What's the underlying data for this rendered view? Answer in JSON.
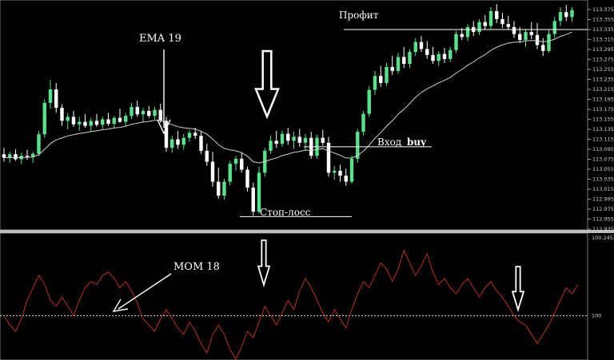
{
  "chart_data": [
    {
      "type": "candlestick",
      "panel": "price",
      "indicator_label": "EMA 19",
      "y_ticks": [
        "113.375",
        "113.355",
        "113.335",
        "113.315",
        "113.295",
        "113.275",
        "113.255",
        "113.235",
        "113.215",
        "113.195",
        "113.175",
        "113.155",
        "113.135",
        "113.115",
        "113.095",
        "113.075",
        "113.055",
        "113.035",
        "113.015",
        "112.995",
        "112.975",
        "112.955",
        "112.935"
      ],
      "ylim": [
        112.935,
        113.375
      ],
      "annotations": {
        "profit": "Профит",
        "entry": "Вход",
        "entry_side": "buy",
        "stop_loss": "Стоп-лосс"
      },
      "levels": {
        "profit": 113.335,
        "entry": 113.1,
        "stop_loss": 112.96
      },
      "colors": {
        "bull": "#55e38c",
        "bear": "#ffffff",
        "ema": "#d0d0d0",
        "level": "#ffffff"
      },
      "candles": [
        [
          113.085,
          113.098,
          113.07,
          113.078
        ],
        [
          113.078,
          113.09,
          113.068,
          113.085
        ],
        [
          113.085,
          113.095,
          113.072,
          113.075
        ],
        [
          113.075,
          113.088,
          113.065,
          113.082
        ],
        [
          113.082,
          113.094,
          113.074,
          113.08
        ],
        [
          113.08,
          113.09,
          113.068,
          113.086
        ],
        [
          113.086,
          113.132,
          113.082,
          113.125
        ],
        [
          113.125,
          113.195,
          113.118,
          113.188
        ],
        [
          113.188,
          113.234,
          113.176,
          113.215
        ],
        [
          113.215,
          113.228,
          113.168,
          113.178
        ],
        [
          113.178,
          113.185,
          113.142,
          113.152
        ],
        [
          113.152,
          113.168,
          113.135,
          113.16
        ],
        [
          113.16,
          113.172,
          113.14,
          113.145
        ],
        [
          113.145,
          113.16,
          113.132,
          113.15
        ],
        [
          113.15,
          113.165,
          113.138,
          113.142
        ],
        [
          113.142,
          113.158,
          113.13,
          113.152
        ],
        [
          113.152,
          113.166,
          113.14,
          113.144
        ],
        [
          113.144,
          113.16,
          113.136,
          113.155
        ],
        [
          113.155,
          113.168,
          113.142,
          113.146
        ],
        [
          113.146,
          113.162,
          113.138,
          113.158
        ],
        [
          113.158,
          113.176,
          113.148,
          113.15
        ],
        [
          113.15,
          113.168,
          113.142,
          113.162
        ],
        [
          113.162,
          113.188,
          113.156,
          113.18
        ],
        [
          113.18,
          113.192,
          113.16,
          113.165
        ],
        [
          113.165,
          113.178,
          113.15,
          113.172
        ],
        [
          113.172,
          113.182,
          113.158,
          113.162
        ],
        [
          113.162,
          113.18,
          113.155,
          113.174
        ],
        [
          113.174,
          113.186,
          113.148,
          113.152
        ],
        [
          113.152,
          113.16,
          113.09,
          113.098
        ],
        [
          113.098,
          113.122,
          113.088,
          113.115
        ],
        [
          113.115,
          113.132,
          113.096,
          113.104
        ],
        [
          113.104,
          113.126,
          113.094,
          113.118
        ],
        [
          113.118,
          113.134,
          113.11,
          113.128
        ],
        [
          113.128,
          113.138,
          113.116,
          113.122
        ],
        [
          113.122,
          113.132,
          113.086,
          113.092
        ],
        [
          113.092,
          113.106,
          113.062,
          113.07
        ],
        [
          113.07,
          113.09,
          113.02,
          113.03
        ],
        [
          113.03,
          113.058,
          112.996,
          113.002
        ],
        [
          113.002,
          113.036,
          112.994,
          113.03
        ],
        [
          113.03,
          113.072,
          113.022,
          113.066
        ],
        [
          113.066,
          113.082,
          113.052,
          113.076
        ],
        [
          113.076,
          113.088,
          113.048,
          113.054
        ],
        [
          113.054,
          113.06,
          113.01,
          113.018
        ],
        [
          113.018,
          113.028,
          112.962,
          112.97
        ],
        [
          112.97,
          113.06,
          112.966,
          113.048
        ],
        [
          113.048,
          113.098,
          113.04,
          113.092
        ],
        [
          113.092,
          113.122,
          113.086,
          113.112
        ],
        [
          113.112,
          113.132,
          113.098,
          113.106
        ],
        [
          113.106,
          113.132,
          113.1,
          113.126
        ],
        [
          113.126,
          113.138,
          113.104,
          113.112
        ],
        [
          113.112,
          113.13,
          113.096,
          113.12
        ],
        [
          113.12,
          113.136,
          113.1,
          113.108
        ],
        [
          113.108,
          113.126,
          113.092,
          113.118
        ],
        [
          113.118,
          113.13,
          113.076,
          113.082
        ],
        [
          113.082,
          113.124,
          113.076,
          113.118
        ],
        [
          113.118,
          113.134,
          113.102,
          113.108
        ],
        [
          113.108,
          113.12,
          113.04,
          113.048
        ],
        [
          113.048,
          113.062,
          113.034,
          113.052
        ],
        [
          113.052,
          113.064,
          113.03,
          113.042
        ],
        [
          113.042,
          113.056,
          113.022,
          113.03
        ],
        [
          113.03,
          113.082,
          113.026,
          113.076
        ],
        [
          113.076,
          113.136,
          113.068,
          113.13
        ],
        [
          113.13,
          113.172,
          113.122,
          113.166
        ],
        [
          113.166,
          113.222,
          113.16,
          113.214
        ],
        [
          113.214,
          113.252,
          113.204,
          113.242
        ],
        [
          113.242,
          113.262,
          113.22,
          113.228
        ],
        [
          113.228,
          113.268,
          113.222,
          113.26
        ],
        [
          113.26,
          113.282,
          113.244,
          113.252
        ],
        [
          113.252,
          113.288,
          113.246,
          113.28
        ],
        [
          113.28,
          113.3,
          113.258,
          113.266
        ],
        [
          113.266,
          113.296,
          113.258,
          113.29
        ],
        [
          113.29,
          113.318,
          113.282,
          113.31
        ],
        [
          113.31,
          113.322,
          113.29,
          113.296
        ],
        [
          113.296,
          113.312,
          113.276,
          113.284
        ],
        [
          113.284,
          113.3,
          113.266,
          113.272
        ],
        [
          113.272,
          113.292,
          113.262,
          113.286
        ],
        [
          113.286,
          113.298,
          113.268,
          113.276
        ],
        [
          113.276,
          113.3,
          113.27,
          113.294
        ],
        [
          113.294,
          113.332,
          113.288,
          113.326
        ],
        [
          113.326,
          113.338,
          113.314,
          113.32
        ],
        [
          113.32,
          113.346,
          113.312,
          113.34
        ],
        [
          113.34,
          113.352,
          113.322,
          113.33
        ],
        [
          113.33,
          113.356,
          113.324,
          113.35
        ],
        [
          113.35,
          113.364,
          113.334,
          113.342
        ],
        [
          113.342,
          113.38,
          113.336,
          113.372
        ],
        [
          113.372,
          113.386,
          113.348,
          113.356
        ],
        [
          113.356,
          113.368,
          113.338,
          113.346
        ],
        [
          113.346,
          113.362,
          113.334,
          113.34
        ],
        [
          113.34,
          113.352,
          113.318,
          113.326
        ],
        [
          113.326,
          113.34,
          113.308,
          113.314
        ],
        [
          113.314,
          113.336,
          113.3,
          113.33
        ],
        [
          113.33,
          113.35,
          113.316,
          113.324
        ],
        [
          113.324,
          113.348,
          113.296,
          113.304
        ],
        [
          113.304,
          113.318,
          113.282,
          113.292
        ],
        [
          113.292,
          113.334,
          113.288,
          113.326
        ],
        [
          113.326,
          113.36,
          113.318,
          113.352
        ],
        [
          113.352,
          113.38,
          113.342,
          113.37
        ],
        [
          113.37,
          113.384,
          113.352,
          113.36
        ],
        [
          113.36,
          113.38,
          113.35,
          113.374
        ]
      ]
    },
    {
      "type": "line",
      "panel": "momentum",
      "indicator_label": "MOM 18",
      "y_ticks": [
        "100.2452",
        "100"
      ],
      "ylim": [
        99.86,
        100.2452
      ],
      "reference_level": 100,
      "colors": {
        "line": "#b8301c",
        "reference": "#d8d8d8"
      },
      "values": [
        100.0,
        99.97,
        99.95,
        99.99,
        100.05,
        100.09,
        100.13,
        100.1,
        100.05,
        100.03,
        100.06,
        100.03,
        100.0,
        100.05,
        100.09,
        100.11,
        100.1,
        100.13,
        100.14,
        100.12,
        100.09,
        100.11,
        100.08,
        100.04,
        99.99,
        99.97,
        99.95,
        99.99,
        100.02,
        99.99,
        99.96,
        99.94,
        99.98,
        99.95,
        99.91,
        99.88,
        99.94,
        99.97,
        99.94,
        99.89,
        99.86,
        99.9,
        99.95,
        99.93,
        99.98,
        100.03,
        100.0,
        99.97,
        100.01,
        100.05,
        100.02,
        100.08,
        100.12,
        100.09,
        100.05,
        100.01,
        99.98,
        100.02,
        99.99,
        99.96,
        100.02,
        100.07,
        100.11,
        100.09,
        100.13,
        100.17,
        100.15,
        100.11,
        100.15,
        100.21,
        100.17,
        100.13,
        100.16,
        100.2,
        100.14,
        100.1,
        100.12,
        100.09,
        100.07,
        100.1,
        100.12,
        100.09,
        100.06,
        100.09,
        100.11,
        100.08,
        100.06,
        100.03,
        100.0,
        99.98,
        99.97,
        99.94,
        99.91,
        99.94,
        99.97,
        100.01,
        100.05,
        100.09,
        100.07,
        100.1
      ]
    }
  ]
}
